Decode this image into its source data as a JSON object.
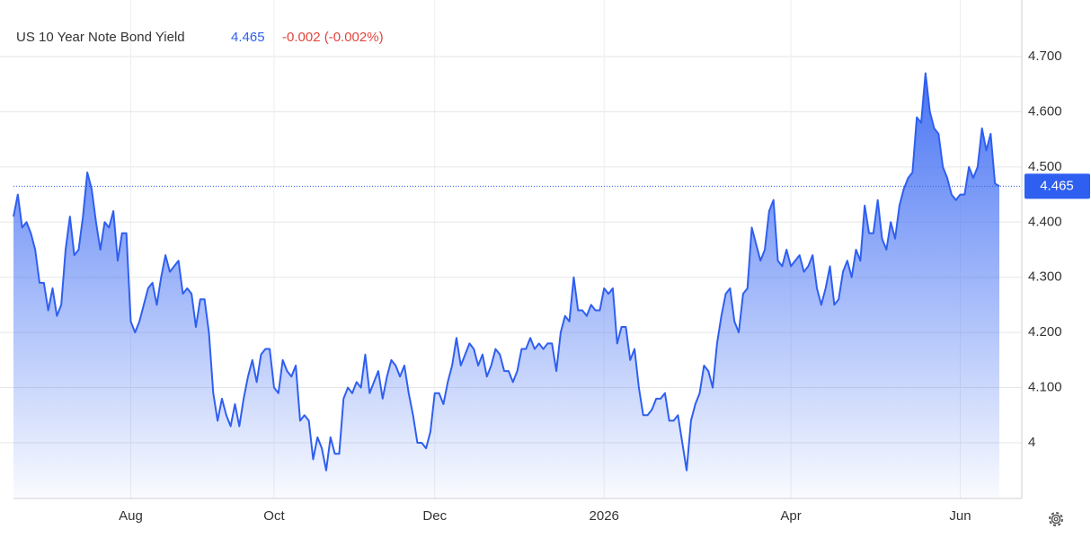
{
  "chart_data": {
    "type": "line",
    "title": "US 10 Year Note Bond Yield",
    "change": "-0.002 (-0.002%)",
    "color": "#2f5ff0",
    "grid": true,
    "ylim": [
      3.9,
      4.8
    ],
    "yticks": [
      4,
      {
        "value": 4.1,
        "label": "4.100"
      },
      {
        "value": 4.2,
        "label": "4.200"
      },
      {
        "value": 4.3,
        "label": "4.300"
      },
      {
        "value": 4.4,
        "label": "4.400"
      },
      {
        "value": 4.5,
        "label": "4.500"
      },
      {
        "value": 4.6,
        "label": "4.600"
      },
      {
        "value": 4.7,
        "label": "4.700"
      }
    ],
    "categories": [
      null,
      null,
      null,
      null,
      null,
      null,
      null,
      null,
      null,
      null,
      null,
      null,
      null,
      null,
      null,
      null,
      null,
      null,
      null,
      null,
      null,
      null,
      null,
      null,
      null,
      null,
      null,
      "Aug",
      null,
      null,
      null,
      null,
      null,
      null,
      null,
      null,
      null,
      null,
      null,
      null,
      null,
      null,
      null,
      null,
      null,
      null,
      null,
      null,
      null,
      null,
      null,
      null,
      null,
      null,
      null,
      null,
      null,
      null,
      null,
      null,
      "Oct",
      null,
      null,
      null,
      null,
      null,
      null,
      null,
      null,
      null,
      null,
      null,
      null,
      null,
      null,
      null,
      null,
      null,
      null,
      null,
      null,
      null,
      null,
      null,
      null,
      null,
      null,
      null,
      null,
      null,
      null,
      null,
      null,
      null,
      null,
      null,
      null,
      "Dec",
      null,
      null,
      null,
      null,
      null,
      null,
      null,
      null,
      null,
      null,
      null,
      null,
      null,
      null,
      null,
      null,
      null,
      null,
      null,
      null,
      null,
      null,
      null,
      null,
      null,
      null,
      null,
      null,
      null,
      null,
      null,
      null,
      null,
      null,
      null,
      null,
      null,
      null,
      "2026",
      null,
      null,
      null,
      null,
      null,
      null,
      null,
      null,
      null,
      null,
      null,
      null,
      null,
      null,
      null,
      null,
      null,
      null,
      null,
      null,
      null,
      null,
      null,
      null,
      null,
      null,
      null,
      null,
      null,
      null,
      null,
      null,
      null,
      null,
      null,
      null,
      null,
      null,
      null,
      null,
      null,
      null,
      "Apr",
      null,
      null,
      null,
      null,
      null,
      null,
      null,
      null,
      null,
      null,
      null,
      null,
      null,
      null,
      null,
      null,
      null,
      null,
      null,
      null,
      null,
      null,
      null,
      null,
      null,
      null,
      null,
      null,
      null,
      null,
      null,
      null,
      null,
      null,
      null,
      null,
      null,
      null,
      "Jun",
      null,
      null,
      null,
      null,
      null,
      null,
      null,
      null,
      null
    ],
    "values": [
      4.41,
      4.45,
      4.39,
      4.4,
      4.38,
      4.35,
      4.29,
      4.29,
      4.24,
      4.28,
      4.23,
      4.25,
      4.35,
      4.41,
      4.34,
      4.35,
      4.41,
      4.49,
      4.46,
      4.4,
      4.35,
      4.4,
      4.39,
      4.42,
      4.33,
      4.38,
      4.38,
      4.22,
      4.2,
      4.22,
      4.25,
      4.28,
      4.29,
      4.25,
      4.3,
      4.34,
      4.31,
      4.32,
      4.33,
      4.27,
      4.28,
      4.27,
      4.21,
      4.26,
      4.26,
      4.2,
      4.09,
      4.04,
      4.08,
      4.05,
      4.03,
      4.07,
      4.03,
      4.08,
      4.12,
      4.15,
      4.11,
      4.16,
      4.17,
      4.17,
      4.1,
      4.09,
      4.15,
      4.13,
      4.12,
      4.14,
      4.04,
      4.05,
      4.04,
      3.97,
      4.01,
      3.99,
      3.95,
      4.01,
      3.98,
      3.98,
      4.08,
      4.1,
      4.09,
      4.11,
      4.1,
      4.16,
      4.09,
      4.11,
      4.13,
      4.08,
      4.12,
      4.15,
      4.14,
      4.12,
      4.14,
      4.09,
      4.05,
      4.0,
      4.0,
      3.99,
      4.02,
      4.09,
      4.09,
      4.07,
      4.11,
      4.14,
      4.19,
      4.14,
      4.16,
      4.18,
      4.17,
      4.14,
      4.16,
      4.12,
      4.14,
      4.17,
      4.16,
      4.13,
      4.13,
      4.11,
      4.13,
      4.17,
      4.17,
      4.19,
      4.17,
      4.18,
      4.17,
      4.18,
      4.18,
      4.13,
      4.2,
      4.23,
      4.22,
      4.3,
      4.24,
      4.24,
      4.23,
      4.25,
      4.24,
      4.24,
      4.28,
      4.27,
      4.28,
      4.18,
      4.21,
      4.21,
      4.15,
      4.17,
      4.1,
      4.05,
      4.05,
      4.06,
      4.08,
      4.08,
      4.09,
      4.04,
      4.04,
      4.05,
      4.0,
      3.95,
      4.04,
      4.07,
      4.09,
      4.14,
      4.13,
      4.1,
      4.18,
      4.23,
      4.27,
      4.28,
      4.22,
      4.2,
      4.27,
      4.28,
      4.39,
      4.36,
      4.33,
      4.35,
      4.42,
      4.44,
      4.33,
      4.32,
      4.35,
      4.32,
      4.33,
      4.34,
      4.31,
      4.32,
      4.34,
      4.28,
      4.25,
      4.28,
      4.32,
      4.25,
      4.26,
      4.31,
      4.33,
      4.3,
      4.35,
      4.33,
      4.43,
      4.38,
      4.38,
      4.44,
      4.37,
      4.35,
      4.4,
      4.37,
      4.43,
      4.46,
      4.48,
      4.49,
      4.59,
      4.58,
      4.67,
      4.6,
      4.57,
      4.56,
      4.5,
      4.48,
      4.45,
      4.44,
      4.45,
      4.45,
      4.5,
      4.48,
      4.5,
      4.57,
      4.53,
      4.56,
      4.47,
      4.465
    ]
  }
}
